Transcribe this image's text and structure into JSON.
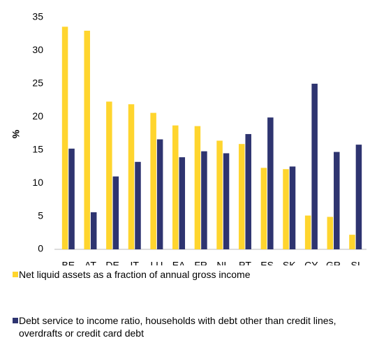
{
  "chart_data": {
    "type": "bar",
    "ylabel": "%",
    "categories": [
      "BE",
      "AT",
      "DE",
      "IT",
      "LU",
      "EA",
      "FR",
      "NL",
      "PT",
      "ES",
      "SK",
      "CY",
      "GR",
      "SI"
    ],
    "series": [
      {
        "name": "Net liquid assets as a fraction of annual gross income",
        "color": "#ffd52e",
        "values": [
          33.6,
          33.0,
          22.3,
          21.9,
          20.6,
          18.7,
          18.6,
          16.4,
          15.9,
          12.3,
          12.1,
          5.1,
          4.9,
          2.2
        ]
      },
      {
        "name": "Debt service to income ratio, households with debt other than credit lines, overdrafts or credit card debt",
        "color": "#2e3470",
        "values": [
          15.2,
          5.6,
          11.0,
          13.2,
          16.6,
          13.9,
          14.8,
          14.5,
          17.4,
          19.9,
          12.5,
          25.0,
          14.7,
          15.8
        ]
      }
    ],
    "ylim": [
      0,
      35
    ],
    "yticks": [
      0,
      5,
      10,
      15,
      20,
      25,
      30,
      35
    ],
    "legend": "bottom"
  }
}
